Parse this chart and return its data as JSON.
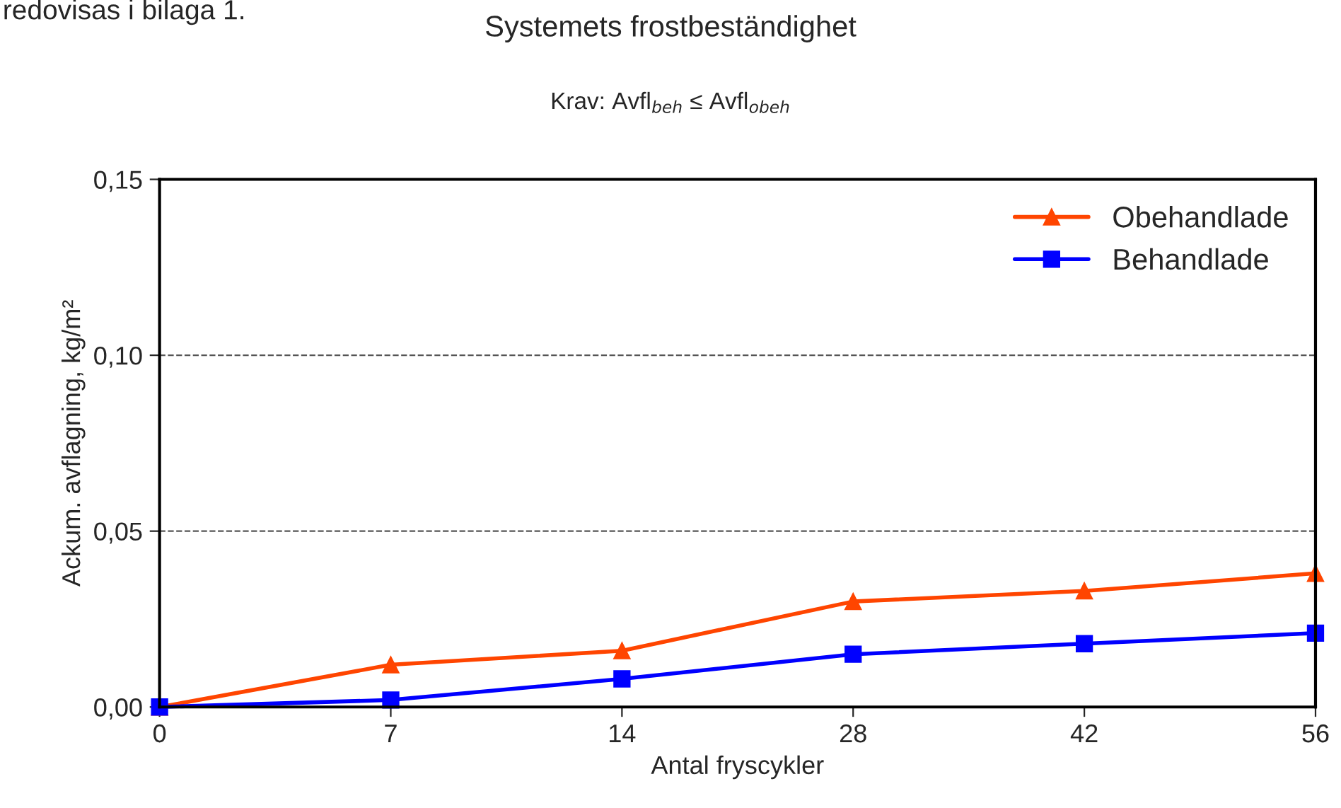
{
  "chart_data": {
    "type": "line",
    "title": "Systemets frostbeständighet",
    "subtitle": "Krav: Avfl$_{beh}$ ≤ Avfl$_{obeh}$",
    "xlabel": "Antal fryscykler",
    "ylabel": "Ackum. avflagning, kg/m²",
    "annotations": [
      "redovisas i bilaga 1."
    ],
    "categories": [
      "0",
      "7",
      "14",
      "28",
      "42",
      "56"
    ],
    "series": [
      {
        "name": "Obehandlade",
        "color": "#ff4500",
        "marker": "triangle",
        "values": [
          0,
          0.012,
          0.016,
          0.03,
          0.033,
          0.038
        ]
      },
      {
        "name": "Behandlade",
        "color": "#0000ff",
        "marker": "square",
        "values": [
          0,
          0.002,
          0.008,
          0.015,
          0.018,
          0.021
        ]
      }
    ],
    "ylim": [
      0,
      0.15
    ],
    "yticks": [
      {
        "value": 0,
        "label": "0,00"
      },
      {
        "value": 0.05,
        "label": "0,05"
      },
      {
        "value": 0.1,
        "label": "0,10"
      },
      {
        "value": 0.15,
        "label": "0,15"
      }
    ],
    "grid": "y",
    "legend": "top right",
    "line_style": "solid"
  }
}
